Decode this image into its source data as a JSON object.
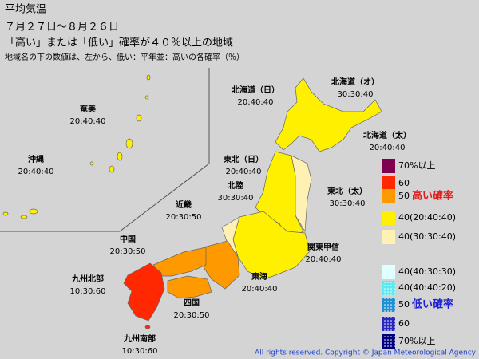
{
  "header": {
    "title": "平均気温",
    "period": "７月２７日～８月２６日",
    "subtitle": "「高い」または「低い」確率が４０％以上の地域",
    "note": "地域名の下の数値は、左から、低い：平年並：高いの各確率（％）"
  },
  "regions": [
    {
      "name": "奄美",
      "probs": "20:40:40"
    },
    {
      "name": "沖縄",
      "probs": "20:40:40"
    },
    {
      "name": "北海道（日）",
      "probs": "20:40:40"
    },
    {
      "name": "北海道（オ）",
      "probs": "30:30:40"
    },
    {
      "name": "北海道（太）",
      "probs": "20:40:40"
    },
    {
      "name": "東北（日）",
      "probs": "20:40:40"
    },
    {
      "name": "東北（太）",
      "probs": "30:30:40"
    },
    {
      "name": "北陸",
      "probs": "30:30:40"
    },
    {
      "name": "近畿",
      "probs": "20:30:50"
    },
    {
      "name": "関東甲信",
      "probs": "20:40:40"
    },
    {
      "name": "中国",
      "probs": "20:30:50"
    },
    {
      "name": "東海",
      "probs": "20:40:40"
    },
    {
      "name": "九州北部",
      "probs": "10:30:60"
    },
    {
      "name": "四国",
      "probs": "20:30:50"
    },
    {
      "name": "九州南部",
      "probs": "10:30:60"
    }
  ],
  "legend": {
    "items": [
      {
        "label": "70%以上",
        "color": "#800050"
      },
      {
        "label": "60",
        "color": "#ff2800"
      },
      {
        "label": "50",
        "color": "#ff9900"
      },
      {
        "label": "40(20:40:40)",
        "color": "#fff000"
      },
      {
        "label": "40(30:30:40)",
        "color": "#fff0b4"
      },
      {
        "label": "40(40:30:30)",
        "color": "#e0ffff"
      },
      {
        "label": "40(40:40:20)",
        "color": "#60e8f0"
      },
      {
        "label": "50",
        "color": "#2090d0"
      },
      {
        "label": "60",
        "color": "#2828c0"
      },
      {
        "label": "70%以上",
        "color": "#000080"
      }
    ],
    "high_label": "高い確率",
    "low_label": "低い確率"
  },
  "footer": {
    "copyright": "All rights reserved. Copyright © Japan Meteorological Agency"
  }
}
